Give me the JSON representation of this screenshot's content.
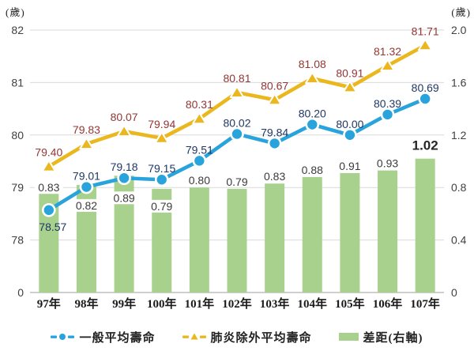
{
  "chart_data": {
    "type": "combo",
    "categories": [
      "97年",
      "98年",
      "99年",
      "100年",
      "101年",
      "102年",
      "103年",
      "104年",
      "105年",
      "106年",
      "107年"
    ],
    "series": [
      {
        "name": "一般平均壽命",
        "type": "line",
        "axis": "left",
        "marker": "circle",
        "color": "#29A3DB",
        "label_color": "#1F3864",
        "values": [
          78.57,
          79.01,
          79.18,
          79.15,
          79.51,
          80.02,
          79.84,
          80.2,
          80.0,
          80.39,
          80.69
        ]
      },
      {
        "name": "肺炎除外平均壽命",
        "type": "line",
        "axis": "left",
        "marker": "triangle",
        "color": "#EAB81E",
        "label_color": "#943634",
        "values": [
          79.4,
          79.83,
          80.07,
          79.94,
          80.31,
          80.81,
          80.67,
          81.08,
          80.91,
          81.32,
          81.71
        ]
      },
      {
        "name": "差距(右軸)",
        "type": "bar",
        "axis": "right",
        "color": "#A9D18E",
        "label_color": "#3B3B3B",
        "values": [
          0.83,
          0.82,
          0.89,
          0.79,
          0.8,
          0.79,
          0.83,
          0.88,
          0.91,
          0.93,
          1.02
        ]
      }
    ],
    "left_axis": {
      "unit": "(歲)",
      "ticks": [
        "82",
        "81",
        "80",
        "79",
        "78",
        "0"
      ],
      "range": [
        78,
        82
      ]
    },
    "right_axis": {
      "unit": "(歲)",
      "ticks": [
        "2.0",
        "1.6",
        "1.2",
        "0.8",
        "0.4",
        "0"
      ],
      "range": [
        0,
        2.0
      ]
    },
    "grid": true,
    "legend_position": "bottom",
    "colors": {
      "gridline": "#D9D9D9",
      "axis_line": "#BFBFBF",
      "tick_text": "#3F3F3F",
      "category_text": "#1A1A1A",
      "highlight_label": "#262626"
    }
  }
}
